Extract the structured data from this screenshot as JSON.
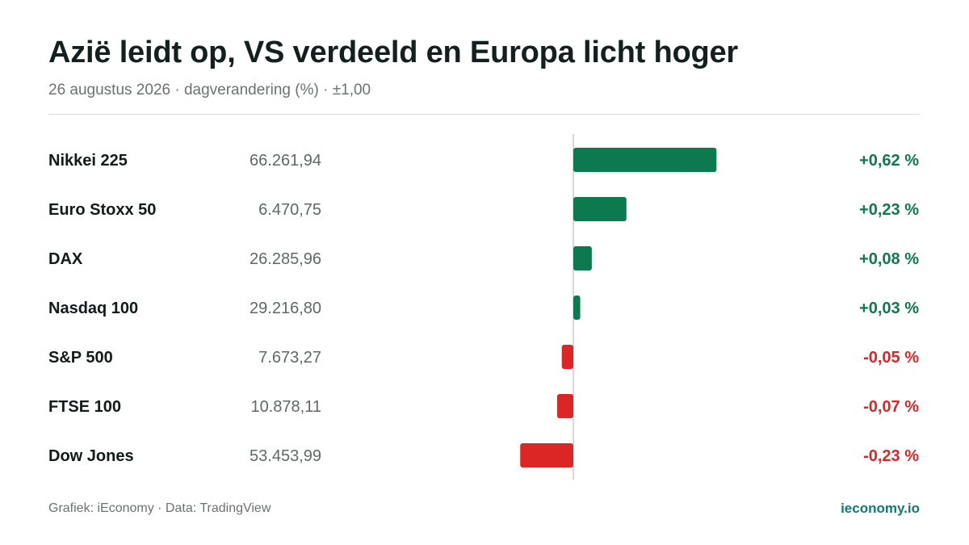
{
  "header": {
    "title": "Azië leidt op, VS verdeeld en Europa licht hoger",
    "subtitle": "26 augustus 2026 · dagverandering (%) · ±1,00"
  },
  "footer": {
    "source": "Grafiek: iEconomy · Data: TradingView",
    "brand": "ieconomy.io"
  },
  "colors": {
    "positive": "#0c7a4e",
    "negative": "#dc2626",
    "axis": "#d4d8d8",
    "label": "#111b1a",
    "value": "#5f6868"
  },
  "chart_data": {
    "type": "bar",
    "orientation": "horizontal",
    "xlim": [
      -1,
      1
    ],
    "categories": [
      "Nikkei 225",
      "Euro Stoxx 50",
      "DAX",
      "Nasdaq 100",
      "S&P 500",
      "FTSE 100",
      "Dow Jones"
    ],
    "index_levels": [
      "66.261,94",
      "6.470,75",
      "26.285,96",
      "29.216,80",
      "7.673,27",
      "10.878,11",
      "53.453,99"
    ],
    "values": [
      0.62,
      0.23,
      0.08,
      0.03,
      -0.05,
      -0.07,
      -0.23
    ],
    "value_labels": [
      "+0,62 %",
      "+0,23 %",
      "+0,08 %",
      "+0,03 %",
      "-0,05 %",
      "-0,07 %",
      "-0,23 %"
    ]
  }
}
